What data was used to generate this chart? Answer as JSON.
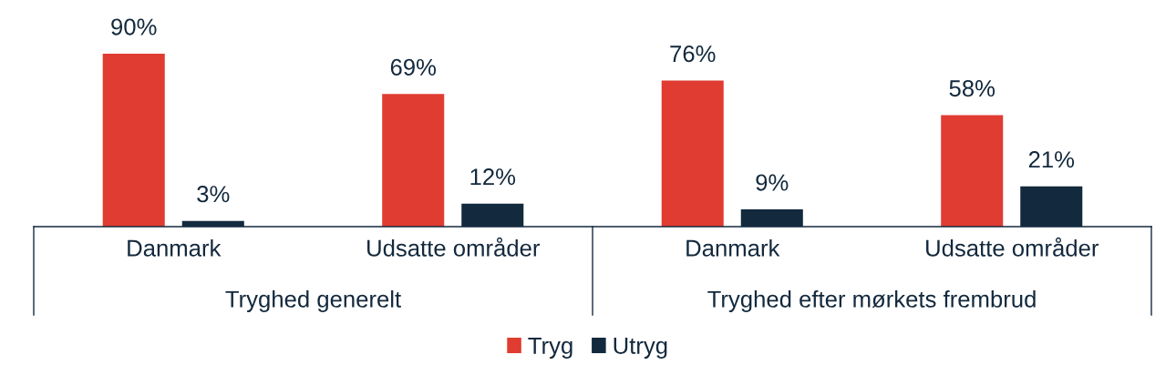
{
  "chart_data": {
    "type": "bar",
    "categories": [
      "Danmark",
      "Udsatte områder",
      "Danmark",
      "Udsatte områder"
    ],
    "series": [
      {
        "name": "Tryg",
        "color": "#e03c31",
        "values": [
          90,
          69,
          76,
          58
        ],
        "value_labels": [
          "90%",
          "69%",
          "76%",
          "58%"
        ]
      },
      {
        "name": "Utryg",
        "color": "#13293d",
        "values": [
          3,
          12,
          9,
          21
        ],
        "value_labels": [
          "3%",
          "12%",
          "9%",
          "21%"
        ]
      }
    ],
    "annotations": [
      "Tryghed generelt",
      "Tryghed efter mørkets frembrud"
    ],
    "legend": "bottom",
    "tick_labels": "x"
  }
}
